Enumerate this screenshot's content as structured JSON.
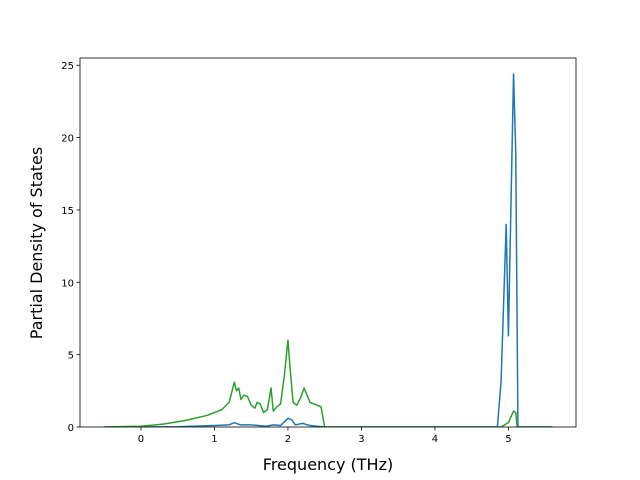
{
  "chart_data": {
    "type": "line",
    "xlabel": "Frequency (THz)",
    "ylabel": "Partial Density of States",
    "xlim": [
      -0.83,
      5.92
    ],
    "ylim": [
      0,
      25.5
    ],
    "xticks": [
      0,
      1,
      2,
      3,
      4,
      5
    ],
    "yticks": [
      0,
      5,
      10,
      15,
      20,
      25
    ],
    "series": [
      {
        "color": "#1f77b4",
        "x": [
          -0.5,
          0,
          0.5,
          1,
          1.2,
          1.27,
          1.35,
          1.5,
          1.6,
          1.7,
          1.8,
          1.9,
          2.0,
          2.05,
          2.1,
          2.2,
          2.3,
          2.5,
          3,
          4,
          4.85,
          4.9,
          4.97,
          5.0,
          5.07,
          5.1,
          5.13,
          5.6
        ],
        "values": [
          0,
          0,
          0.02,
          0.1,
          0.15,
          0.3,
          0.15,
          0.15,
          0.1,
          0.05,
          0.15,
          0.1,
          0.6,
          0.5,
          0.15,
          0.25,
          0.1,
          0,
          0,
          0,
          0,
          3.1,
          14,
          6.3,
          24.4,
          19,
          0,
          0
        ]
      },
      {
        "color": "#2ca02c",
        "x": [
          -0.5,
          0,
          0.3,
          0.6,
          0.9,
          1.1,
          1.2,
          1.27,
          1.3,
          1.33,
          1.36,
          1.4,
          1.45,
          1.5,
          1.55,
          1.58,
          1.62,
          1.67,
          1.72,
          1.77,
          1.8,
          1.85,
          1.9,
          1.95,
          2.0,
          2.03,
          2.07,
          2.12,
          2.17,
          2.22,
          2.3,
          2.45,
          2.5,
          3,
          4,
          4.9,
          5.0,
          5.07,
          5.1,
          5.12,
          5.6
        ],
        "values": [
          0,
          0.05,
          0.2,
          0.45,
          0.8,
          1.2,
          1.7,
          3.1,
          2.5,
          2.7,
          1.9,
          2.2,
          2.1,
          1.5,
          1.3,
          1.7,
          1.6,
          1.0,
          1.2,
          2.7,
          1.1,
          1.4,
          1.6,
          3.5,
          6.0,
          4.0,
          1.7,
          1.5,
          2.0,
          2.7,
          1.7,
          1.4,
          0,
          0,
          0,
          0,
          0.3,
          1.1,
          1.0,
          0,
          0
        ]
      }
    ]
  }
}
